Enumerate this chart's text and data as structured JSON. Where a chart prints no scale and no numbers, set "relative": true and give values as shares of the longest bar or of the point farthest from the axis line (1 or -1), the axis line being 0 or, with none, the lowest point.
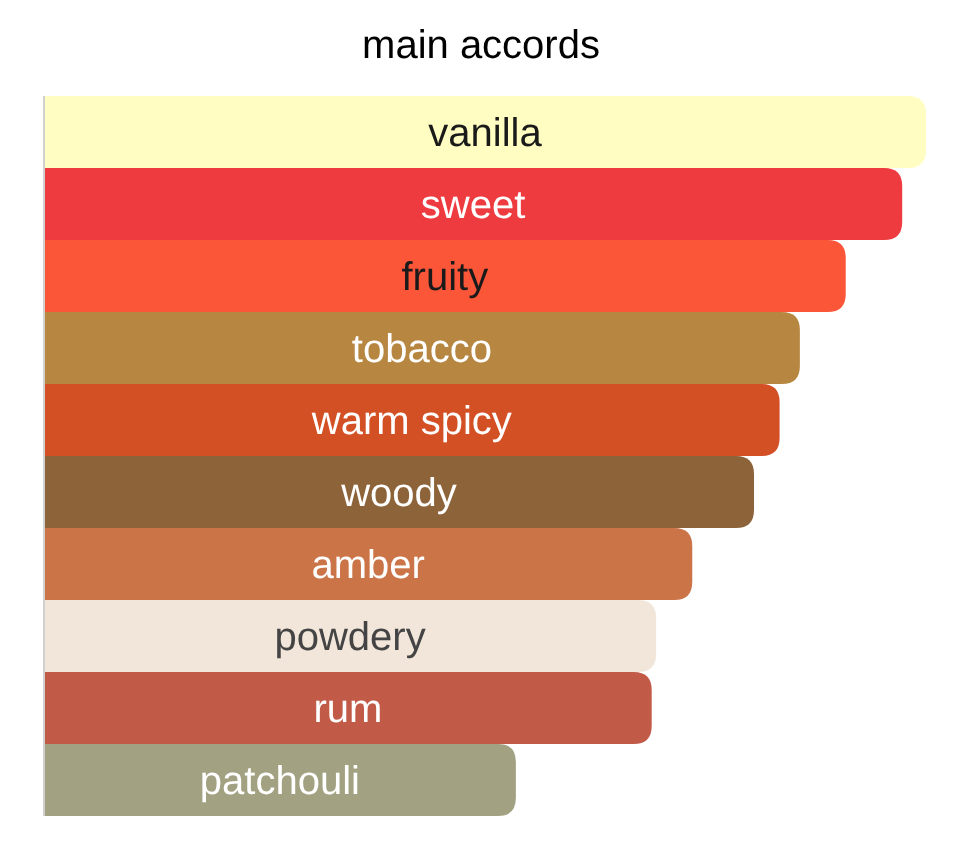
{
  "chart_data": {
    "type": "bar",
    "title": "main accords",
    "orientation": "horizontal",
    "relative": true,
    "categories": [
      "vanilla",
      "sweet",
      "fruity",
      "tobacco",
      "warm spicy",
      "woody",
      "amber",
      "powdery",
      "rum",
      "patchouli"
    ],
    "values": [
      1,
      0.973,
      0.909,
      0.857,
      0.834,
      0.805,
      0.735,
      0.694,
      0.689,
      0.535
    ],
    "colors": [
      "#fffdc1",
      "#ee3b40",
      "#fc5639",
      "#b78742",
      "#d35024",
      "#8d6339",
      "#cb7447",
      "#f2e6da",
      "#c25a48",
      "#a2a181"
    ]
  }
}
